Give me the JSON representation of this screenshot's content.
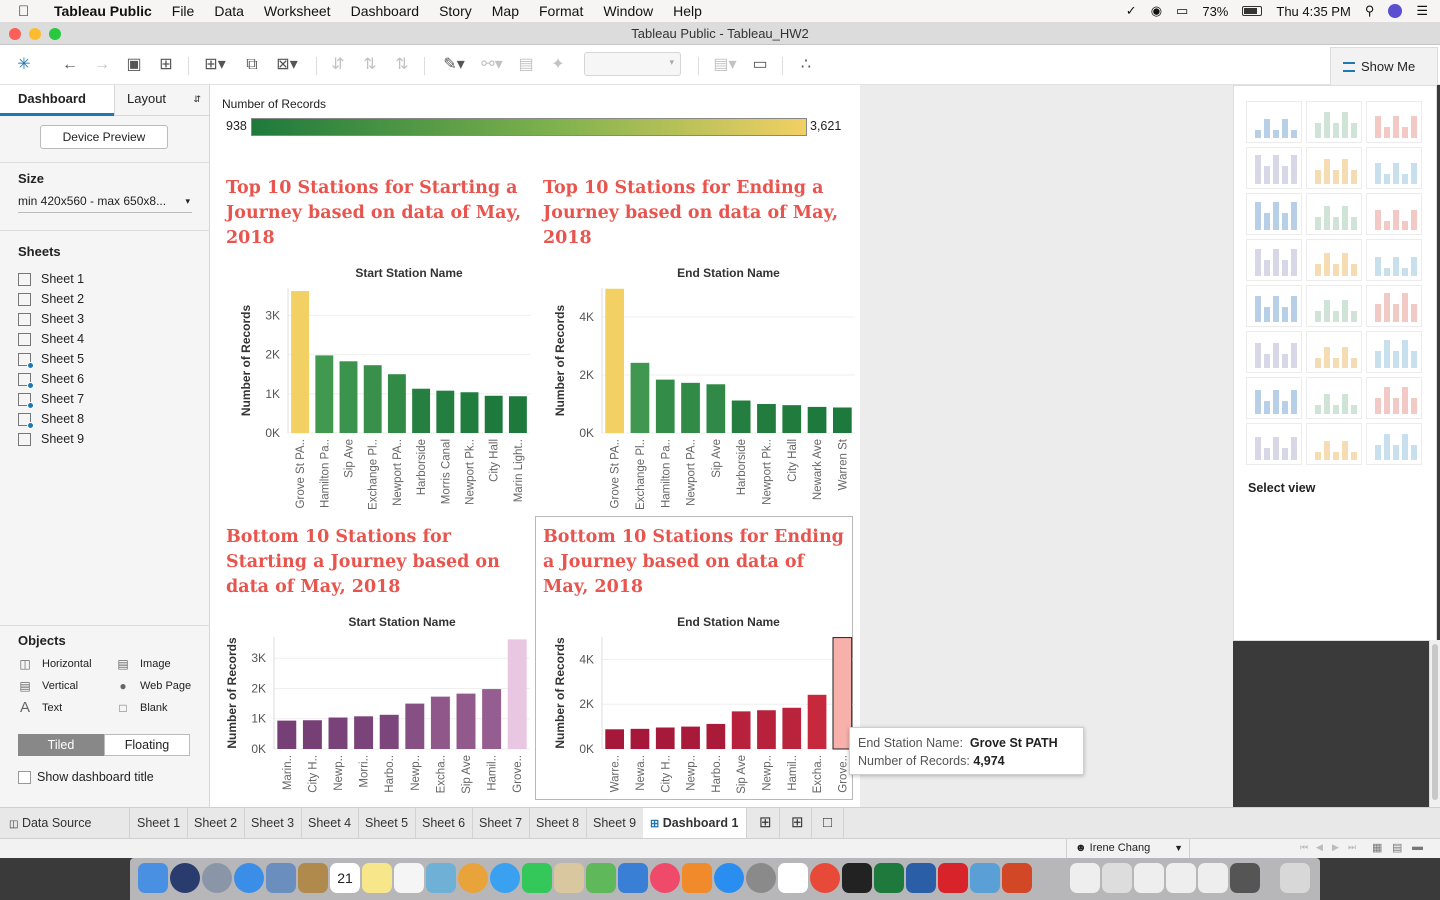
{
  "menubar": {
    "app_name": "Tableau Public",
    "items": [
      "File",
      "Data",
      "Worksheet",
      "Dashboard",
      "Story",
      "Map",
      "Format",
      "Window",
      "Help"
    ],
    "battery": "73%",
    "clock": "Thu 4:35 PM"
  },
  "window": {
    "title": "Tableau Public - Tableau_HW2"
  },
  "toolbar": {
    "show_me_label": "Show Me"
  },
  "left_panel": {
    "tab_dashboard": "Dashboard",
    "tab_layout": "Layout",
    "device_preview_label": "Device Preview",
    "size_label": "Size",
    "size_value": "min 420x560 - max 650x8...",
    "sheets_label": "Sheets",
    "sheets": [
      "Sheet 1",
      "Sheet 2",
      "Sheet 3",
      "Sheet 4",
      "Sheet 5",
      "Sheet 6",
      "Sheet 7",
      "Sheet 8",
      "Sheet 9"
    ],
    "objects_label": "Objects",
    "objects": {
      "horizontal": "Horizontal",
      "image": "Image",
      "vertical": "Vertical",
      "web_page": "Web Page",
      "text": "Text",
      "blank": "Blank"
    },
    "tiled_label": "Tiled",
    "floating_label": "Floating",
    "show_title_label": "Show dashboard title"
  },
  "legend": {
    "title": "Number of Records",
    "min": "938",
    "max": "3,621",
    "color_low": "#1e7a3c",
    "color_high": "#f2d064"
  },
  "chart_data": [
    {
      "type": "bar",
      "title": "Top 10 Stations for Starting a Journey based on data of May, 2018",
      "header": "Start Station Name",
      "ylabel": "Number of Records",
      "yticks": [
        "0K",
        "1K",
        "2K",
        "3K"
      ],
      "ylim": [
        0,
        3700
      ],
      "categories": [
        "Grove St PA..",
        "Hamilton Pa..",
        "Sip Ave",
        "Exchange Pl..",
        "Newport PA..",
        "Harborside",
        "Morris Canal",
        "Newport Pk..",
        "City Hall",
        "Marin Light.."
      ],
      "values": [
        3621,
        1980,
        1830,
        1730,
        1500,
        1130,
        1080,
        1040,
        950,
        938
      ],
      "palette": "green"
    },
    {
      "type": "bar",
      "title": "Top 10 Stations for Ending a Journey based on data of May, 2018",
      "header": "End Station Name",
      "ylabel": "Number of Records",
      "yticks": [
        "0K",
        "2K",
        "4K"
      ],
      "ylim": [
        0,
        5000
      ],
      "categories": [
        "Grove St PA..",
        "Exchange Pl..",
        "Hamilton Pa..",
        "Newport PA..",
        "Sip Ave",
        "Harborside",
        "Newport Pk..",
        "City Hall",
        "Newark Ave",
        "Warren St"
      ],
      "values": [
        4974,
        2420,
        1840,
        1730,
        1680,
        1120,
        1000,
        960,
        900,
        880
      ],
      "palette": "green"
    },
    {
      "type": "bar",
      "title": "Bottom 10 Stations for Starting a Journey based on data of May, 2018",
      "header": "Start Station Name",
      "ylabel": "Number of Records",
      "yticks": [
        "0K",
        "1K",
        "2K",
        "3K"
      ],
      "ylim": [
        0,
        3700
      ],
      "categories": [
        "Marin..",
        "City H..",
        "Newp..",
        "Morri..",
        "Harbo..",
        "Newp..",
        "Excha..",
        "Sip Ave",
        "Hamil..",
        "Grove.."
      ],
      "values": [
        938,
        950,
        1040,
        1080,
        1130,
        1500,
        1730,
        1830,
        1980,
        3621
      ],
      "palette": "purple"
    },
    {
      "type": "bar",
      "title": "Bottom 10 Stations for Ending a Journey based on data of May, 2018",
      "header": "End Station Name",
      "ylabel": "Number of Records",
      "yticks": [
        "0K",
        "2K",
        "4K"
      ],
      "ylim": [
        0,
        5000
      ],
      "categories": [
        "Warre..",
        "Newa..",
        "City H..",
        "Newp..",
        "Harbo..",
        "Sip Ave",
        "Newp..",
        "Hamil..",
        "Excha..",
        "Grove.."
      ],
      "values": [
        880,
        900,
        960,
        1000,
        1120,
        1680,
        1730,
        1840,
        2420,
        4974
      ],
      "palette": "red"
    }
  ],
  "tooltip": {
    "k1": "End Station Name:",
    "v1": "Grove St PATH",
    "k2": "Number of Records:",
    "v2": "4,974"
  },
  "show_me": {
    "select_label": "Select view"
  },
  "bottom_tabs": {
    "data_source": "Data Source",
    "sheets": [
      "Sheet 1",
      "Sheet 2",
      "Sheet 3",
      "Sheet 4",
      "Sheet 5",
      "Sheet 6",
      "Sheet 7",
      "Sheet 8",
      "Sheet 9"
    ],
    "dashboard": "Dashboard 1"
  },
  "status": {
    "user": "Irene Chang"
  },
  "dock": {
    "calendar_day": "21"
  }
}
